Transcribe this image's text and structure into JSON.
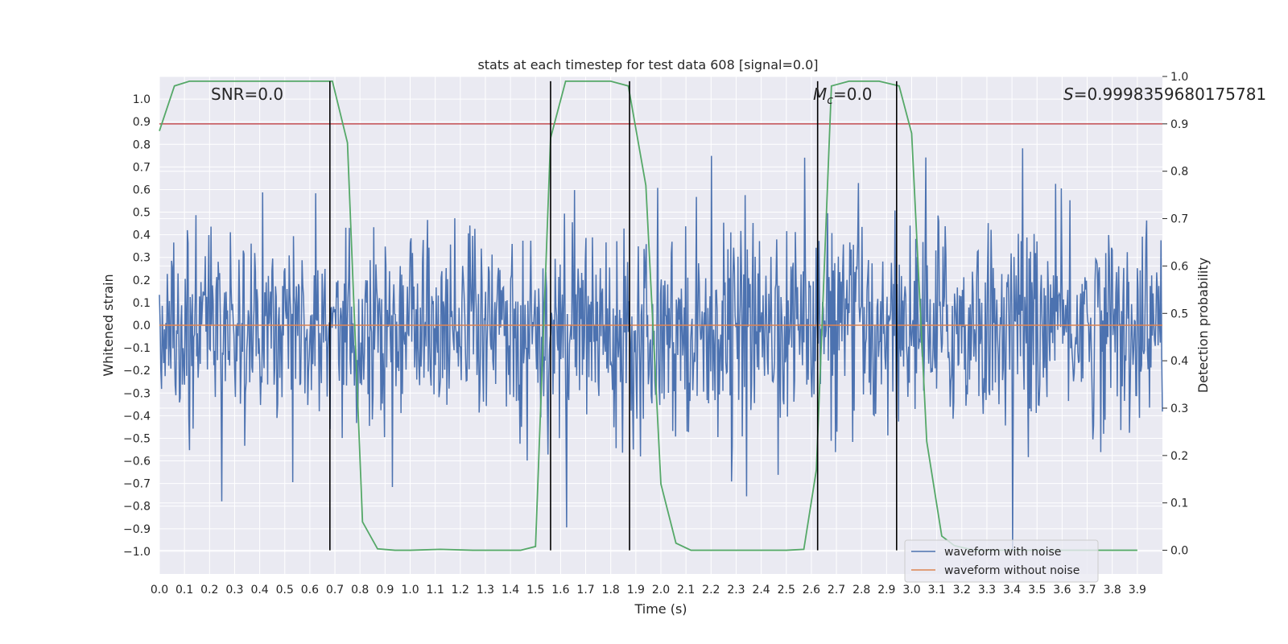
{
  "chart_data": {
    "type": "line",
    "title": "stats at each timestep for test data 608 [signal=0.0]",
    "xlabel": "Time (s)",
    "ylabel": "Whitened strain",
    "y2label": "Detection probability",
    "xlim": [
      0.0,
      4.0
    ],
    "ylim": [
      -1.1,
      1.1
    ],
    "y2lim": [
      -0.05,
      1.0
    ],
    "grid": true,
    "x_ticks": [
      "0.0",
      "0.1",
      "0.2",
      "0.3",
      "0.4",
      "0.5",
      "0.6",
      "0.7",
      "0.8",
      "0.9",
      "1.0",
      "1.1",
      "1.2",
      "1.3",
      "1.4",
      "1.5",
      "1.6",
      "1.7",
      "1.8",
      "1.9",
      "2.0",
      "2.1",
      "2.2",
      "2.3",
      "2.4",
      "2.5",
      "2.6",
      "2.7",
      "2.8",
      "2.9",
      "3.0",
      "3.1",
      "3.2",
      "3.3",
      "3.4",
      "3.5",
      "3.6",
      "3.7",
      "3.8",
      "3.9"
    ],
    "y_ticks": [
      "1.0",
      "0.9",
      "0.8",
      "0.7",
      "0.6",
      "0.5",
      "0.4",
      "0.3",
      "0.2",
      "0.1",
      "0.0",
      "−0.1",
      "−0.2",
      "−0.3",
      "−0.4",
      "−0.5",
      "−0.6",
      "−0.7",
      "−0.8",
      "−0.9",
      "−1.0"
    ],
    "y2_ticks": [
      "1.0",
      "0.9",
      "0.8",
      "0.7",
      "0.6",
      "0.5",
      "0.4",
      "0.3",
      "0.2",
      "0.1",
      "0.0"
    ],
    "annotations": {
      "snr": "SNR=0.0",
      "mc_symbol": "M",
      "mc_sub": "c",
      "mc_value": "=0.0",
      "s_symbol": "S",
      "s_value": "=0.9998359680175781"
    },
    "legend": {
      "position": "lower-right",
      "entries": [
        {
          "label": "waveform with noise",
          "color": "#4c72b0"
        },
        {
          "label": "waveform without noise",
          "color": "#dd8452"
        }
      ]
    },
    "series": [
      {
        "name": "waveform with noise",
        "color": "#4c72b0",
        "kind": "noise",
        "amplitude": 0.22,
        "n_points": 1400
      },
      {
        "name": "waveform without noise",
        "color": "#dd8452",
        "values_constant": 0.0
      },
      {
        "name": "Detection probability",
        "axis": "right",
        "color": "#55a868",
        "x": [
          0.0,
          0.06,
          0.12,
          0.2,
          0.4,
          0.6,
          0.69,
          0.75,
          0.81,
          0.87,
          0.94,
          1.0,
          1.12,
          1.25,
          1.37,
          1.44,
          1.5,
          1.56,
          1.62,
          1.7,
          1.8,
          1.87,
          1.94,
          2.0,
          2.06,
          2.12,
          2.25,
          2.5,
          2.57,
          2.62,
          2.68,
          2.75,
          2.87,
          2.95,
          3.0,
          3.06,
          3.12,
          3.17,
          3.25,
          3.5,
          3.75,
          3.9
        ],
        "values": [
          0.885,
          0.98,
          0.99,
          0.99,
          0.99,
          0.99,
          0.99,
          0.86,
          0.06,
          0.003,
          0.0,
          0.0,
          0.002,
          0.0,
          0.0,
          0.0,
          0.008,
          0.87,
          0.99,
          0.99,
          0.99,
          0.98,
          0.77,
          0.14,
          0.015,
          0.0,
          0.0,
          0.0,
          0.002,
          0.17,
          0.98,
          0.99,
          0.99,
          0.98,
          0.88,
          0.23,
          0.03,
          0.01,
          0.0,
          0.0,
          0.0,
          0.0
        ]
      }
    ],
    "threshold_line": {
      "axis": "right",
      "value": 0.9,
      "color": "#c44e52"
    },
    "vertical_lines_x": [
      0.68,
      1.56,
      1.875,
      2.625,
      2.94
    ]
  }
}
